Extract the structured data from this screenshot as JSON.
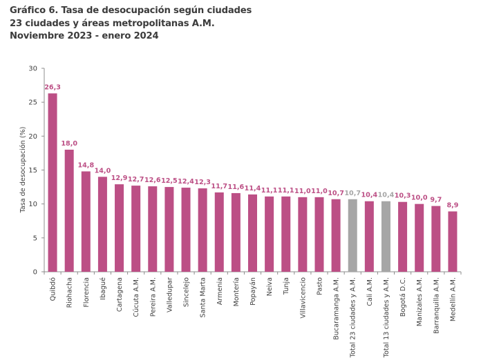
{
  "chart_data": {
    "type": "bar",
    "title": "Gráfico 6. Tasa de desocupación según ciudades",
    "subtitle_lines": [
      "23 ciudades y áreas metropolitanas A.M.",
      "Noviembre 2023 - enero 2024"
    ],
    "xlabel": "",
    "ylabel": "Tasa de desocupación (%)",
    "ylim": [
      0,
      30
    ],
    "yticks": [
      0,
      5,
      10,
      15,
      20,
      25,
      30
    ],
    "grid": false,
    "legend": "none",
    "categories": [
      "Quibdó",
      "Riohacha",
      "Florencia",
      "Ibagué",
      "Cartagena",
      "Cúcuta A.M.",
      "Pereira A.M.",
      "Valledupar",
      "Sincelejo",
      "Santa Marta",
      "Armenia",
      "Montería",
      "Popayán",
      "Neiva",
      "Tunja",
      "Villavicencio",
      "Pasto",
      "Bucaramanga A.M.",
      "Total 23 ciudades y A.M.",
      "Cali A.M.",
      "Total 13 ciudades y A.M.",
      "Bogotá D.C.",
      "Manizales A.M.",
      "Barranquilla A.M.",
      "Medellín A.M."
    ],
    "values": [
      26.3,
      18.0,
      14.8,
      14.0,
      12.9,
      12.7,
      12.6,
      12.5,
      12.4,
      12.3,
      11.7,
      11.6,
      11.4,
      11.1,
      11.1,
      11.0,
      11.0,
      10.7,
      10.7,
      10.4,
      10.4,
      10.3,
      10.0,
      9.7,
      8.9
    ],
    "value_labels": [
      "26,3",
      "18,0",
      "14,8",
      "14,0",
      "12,9",
      "12,7",
      "12,6",
      "12,5",
      "12,4",
      "12,3",
      "11,7",
      "11,6",
      "11,4",
      "11,1",
      "11,1",
      "11,0",
      "11,0",
      "10,7",
      "10,7",
      "10,4",
      "10,4",
      "10,3",
      "10,0",
      "9,7",
      "8,9"
    ],
    "highlight_totals": [
      "Total 23 ciudades y A.M.",
      "Total 13 ciudades y A.M."
    ],
    "colors": {
      "bar": "#bc4f85",
      "bar_total": "#a6a6a6",
      "label": "#bc4f85",
      "label_total": "#a6a6a6",
      "axis": "#8c8c8c"
    }
  }
}
